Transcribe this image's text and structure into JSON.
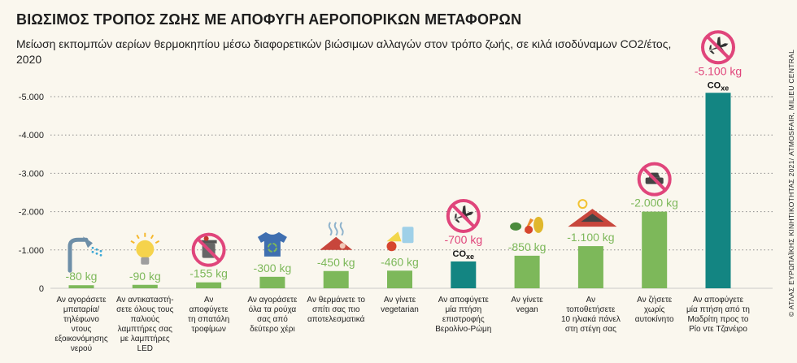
{
  "header": {
    "title": "ΒΙΩΣΙΜΟΣ ΤΡΟΠΟΣ ΖΩΗΣ ΜΕ ΑΠΟΦΥΓΗ ΑΕΡΟΠΟΡΙΚΩΝ ΜΕΤΑΦΟΡΩΝ",
    "subtitle": "Μείωση εκπομπών αερίων θερμοκηπίου μέσω διαφορετικών βιώσιμων αλλαγών στον τρόπο ζωής, σε κιλά ισοδύναμων CO2/έτος, 2020"
  },
  "credit": "© ΑΤΛΑΣ ΕΥΡΩΠΑΪΚΗΣ ΚΙΝΗΤΙΚΟΤΗΤΑΣ 2021/ ATMOSFAIR, MILIEU CENTRAL",
  "co2_label": {
    "main": "CO",
    "sub": "xe"
  },
  "colors": {
    "green": "#7db85a",
    "teal": "#138582",
    "pink": "#e0457b",
    "grid": "#8c8c8c",
    "background": "#faf7ee"
  },
  "chart_data": {
    "type": "bar",
    "ylim": [
      0,
      -5500
    ],
    "yticks": [
      0,
      -1000,
      -2000,
      -3000,
      -4000,
      -5000
    ],
    "ytick_labels": [
      "0",
      "-1.000",
      "-2.000",
      "-3.000",
      "-4.000",
      "-5.000"
    ],
    "grid": "horizontal dotted",
    "bars": [
      {
        "value": -80,
        "label": "-80 kg",
        "category": [
          "Αν αγοράσετε",
          "μπαταρία/",
          "τηλέφωνο",
          "ντους",
          "εξοικονόμησης",
          "νερού"
        ],
        "highlight": false,
        "icon": "shower-icon"
      },
      {
        "value": -90,
        "label": "-90 kg",
        "category": [
          "Αν αντικαταστή-",
          "σετε όλους τους",
          "παλιούς",
          "λαμπτήρες σας",
          "με λαμπτήρες",
          "LED"
        ],
        "highlight": false,
        "icon": "light-bulb-icon"
      },
      {
        "value": -155,
        "label": "-155 kg",
        "category": [
          "Αν",
          "αποφύγετε",
          "τη σπατάλη",
          "τροφίμων"
        ],
        "highlight": false,
        "icon": "no-food-waste-icon"
      },
      {
        "value": -300,
        "label": "-300 kg",
        "category": [
          "Αν αγοράσετε",
          "όλα τα ρούχα",
          "σας από",
          "δεύτερο χέρι"
        ],
        "highlight": false,
        "icon": "recycled-shirt-icon"
      },
      {
        "value": -450,
        "label": "-450 kg",
        "category": [
          "Αν θερμάνετε το",
          "σπίτι σας πιο",
          "αποτελεσματικά"
        ],
        "highlight": false,
        "icon": "heated-roof-icon"
      },
      {
        "value": -460,
        "label": "-460 kg",
        "category": [
          "Αν γίνετε",
          "vegetarian"
        ],
        "highlight": false,
        "icon": "vegetarian-food-icon"
      },
      {
        "value": -700,
        "label": "-700 kg",
        "category": [
          "Αν αποφύγετε",
          "μία πτήση",
          "επιστροφής",
          "Βερολίνο-Ρώμη"
        ],
        "highlight": true,
        "icon": "no-flight-icon"
      },
      {
        "value": -850,
        "label": "-850 kg",
        "category": [
          "Αν γίνετε",
          "vegan"
        ],
        "highlight": false,
        "icon": "vegetables-icon"
      },
      {
        "value": -1100,
        "label": "-1.100 kg",
        "category": [
          "Αν",
          "τοποθετήσετε",
          "10 ηλιακά πάνελ",
          "στη στέγη σας"
        ],
        "highlight": false,
        "icon": "solar-panel-icon"
      },
      {
        "value": -2000,
        "label": "-2.000 kg",
        "category": [
          "Αν ζήσετε",
          "χωρίς",
          "αυτοκίνητο"
        ],
        "highlight": false,
        "icon": "no-car-icon"
      },
      {
        "value": -5100,
        "label": "-5.100 kg",
        "category": [
          "Αν αποφύγετε",
          "μία πτήση από τη",
          "Μαδρίτη προς το",
          "Ρίο ντε Τζανέιρο"
        ],
        "highlight": true,
        "icon": "no-flight-icon"
      }
    ]
  }
}
